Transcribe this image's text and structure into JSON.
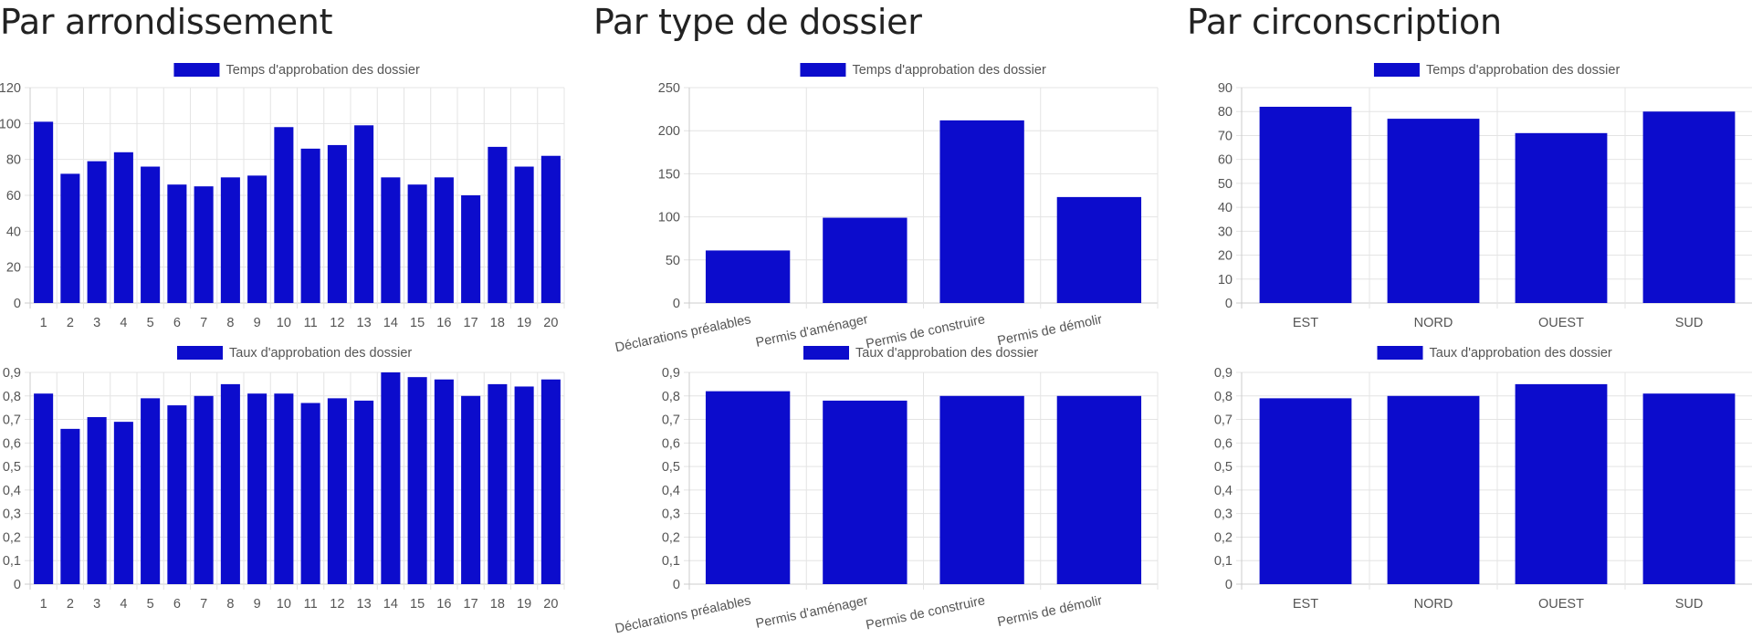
{
  "colors": {
    "bar": "#0c0ccc",
    "grid": "#e4e4e4",
    "axis": "#cccccc"
  },
  "sections": [
    {
      "title": "Par arrondissement",
      "charts": [
        {
          "type": "bar",
          "legend": "Temps d'approbation des dossier",
          "categories": [
            "1",
            "2",
            "3",
            "4",
            "5",
            "6",
            "7",
            "8",
            "9",
            "10",
            "11",
            "12",
            "13",
            "14",
            "15",
            "16",
            "17",
            "18",
            "19",
            "20"
          ],
          "values": [
            101,
            72,
            79,
            84,
            76,
            66,
            65,
            70,
            71,
            98,
            86,
            88,
            99,
            70,
            66,
            70,
            60,
            87,
            76,
            82
          ],
          "ylim": [
            0,
            120
          ],
          "yticks": [
            0,
            20,
            40,
            60,
            80,
            100,
            120
          ],
          "rotate_x": false
        },
        {
          "type": "bar",
          "legend": "Taux d'approbation des dossier",
          "categories": [
            "1",
            "2",
            "3",
            "4",
            "5",
            "6",
            "7",
            "8",
            "9",
            "10",
            "11",
            "12",
            "13",
            "14",
            "15",
            "16",
            "17",
            "18",
            "19",
            "20"
          ],
          "values": [
            0.81,
            0.66,
            0.71,
            0.69,
            0.79,
            0.76,
            0.8,
            0.85,
            0.81,
            0.81,
            0.77,
            0.79,
            0.78,
            0.9,
            0.88,
            0.87,
            0.8,
            0.85,
            0.84,
            0.87
          ],
          "ylim": [
            0,
            0.9
          ],
          "yticks": [
            "0",
            "0,1",
            "0,2",
            "0,3",
            "0,4",
            "0,5",
            "0,6",
            "0,7",
            "0,8",
            "0,9"
          ],
          "rotate_x": false
        }
      ]
    },
    {
      "title": "Par type de dossier",
      "charts": [
        {
          "type": "bar",
          "legend": "Temps d'approbation des dossier",
          "categories": [
            "Déclarations préalables",
            "Permis d'aménager",
            "Permis de construire",
            "Permis de démolir"
          ],
          "values": [
            61,
            99,
            212,
            123
          ],
          "ylim": [
            0,
            250
          ],
          "yticks": [
            0,
            50,
            100,
            150,
            200,
            250
          ],
          "rotate_x": true
        },
        {
          "type": "bar",
          "legend": "Taux d'approbation des dossier",
          "categories": [
            "Déclarations préalables",
            "Permis d'aménager",
            "Permis de construire",
            "Permis de démolir"
          ],
          "values": [
            0.82,
            0.78,
            0.8,
            0.8
          ],
          "ylim": [
            0,
            0.9
          ],
          "yticks": [
            "0",
            "0,1",
            "0,2",
            "0,3",
            "0,4",
            "0,5",
            "0,6",
            "0,7",
            "0,8",
            "0,9"
          ],
          "rotate_x": true
        }
      ]
    },
    {
      "title": "Par circonscription",
      "charts": [
        {
          "type": "bar",
          "legend": "Temps d'approbation des dossier",
          "categories": [
            "EST",
            "NORD",
            "OUEST",
            "SUD"
          ],
          "values": [
            82,
            77,
            71,
            80
          ],
          "ylim": [
            0,
            90
          ],
          "yticks": [
            0,
            10,
            20,
            30,
            40,
            50,
            60,
            70,
            80,
            90
          ],
          "rotate_x": false
        },
        {
          "type": "bar",
          "legend": "Taux d'approbation des dossier",
          "categories": [
            "EST",
            "NORD",
            "OUEST",
            "SUD"
          ],
          "values": [
            0.79,
            0.8,
            0.85,
            0.81
          ],
          "ylim": [
            0,
            0.9
          ],
          "yticks": [
            "0",
            "0,1",
            "0,2",
            "0,3",
            "0,4",
            "0,5",
            "0,6",
            "0,7",
            "0,8",
            "0,9"
          ],
          "rotate_x": false
        }
      ]
    }
  ]
}
